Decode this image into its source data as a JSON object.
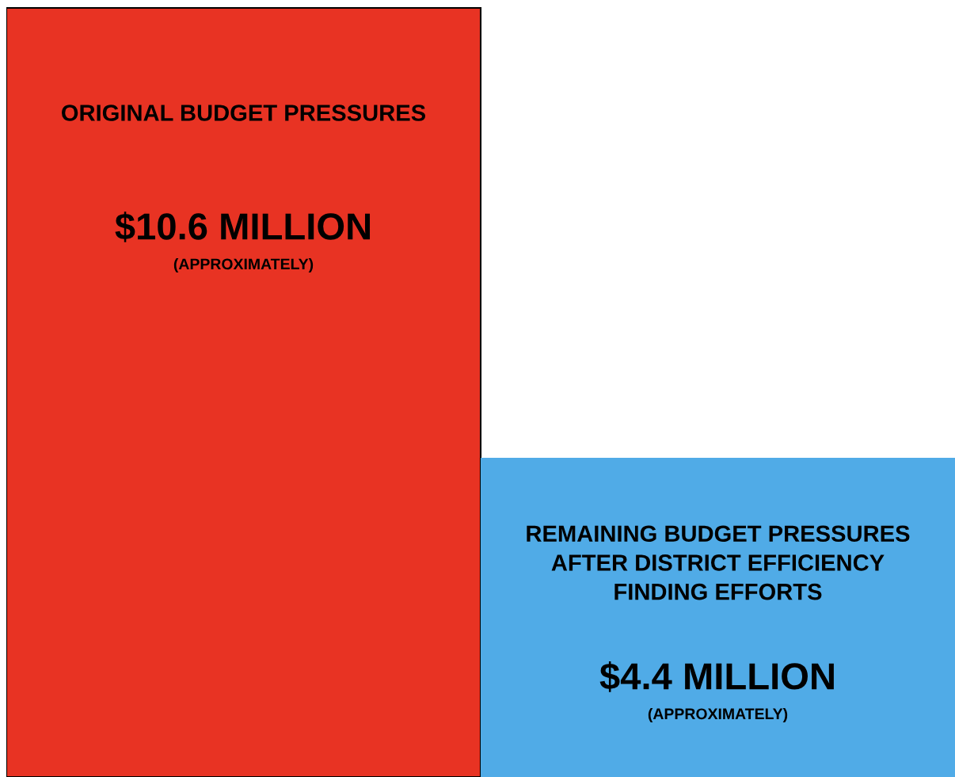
{
  "chart_data": {
    "type": "bar",
    "categories": [
      "ORIGINAL BUDGET PRESSURES",
      "REMAINING BUDGET PRESSURES\nAFTER DISTRICT EFFICIENCY\nFINDING EFFORTS"
    ],
    "values": [
      10.6,
      4.4
    ],
    "colors": [
      "#e83323",
      "#50abe7"
    ],
    "value_labels": [
      "$10.6 MILLION",
      "$4.4 MILLION"
    ],
    "annotations": [
      "(APPROXIMATELY)",
      "(APPROXIMATELY)"
    ]
  }
}
